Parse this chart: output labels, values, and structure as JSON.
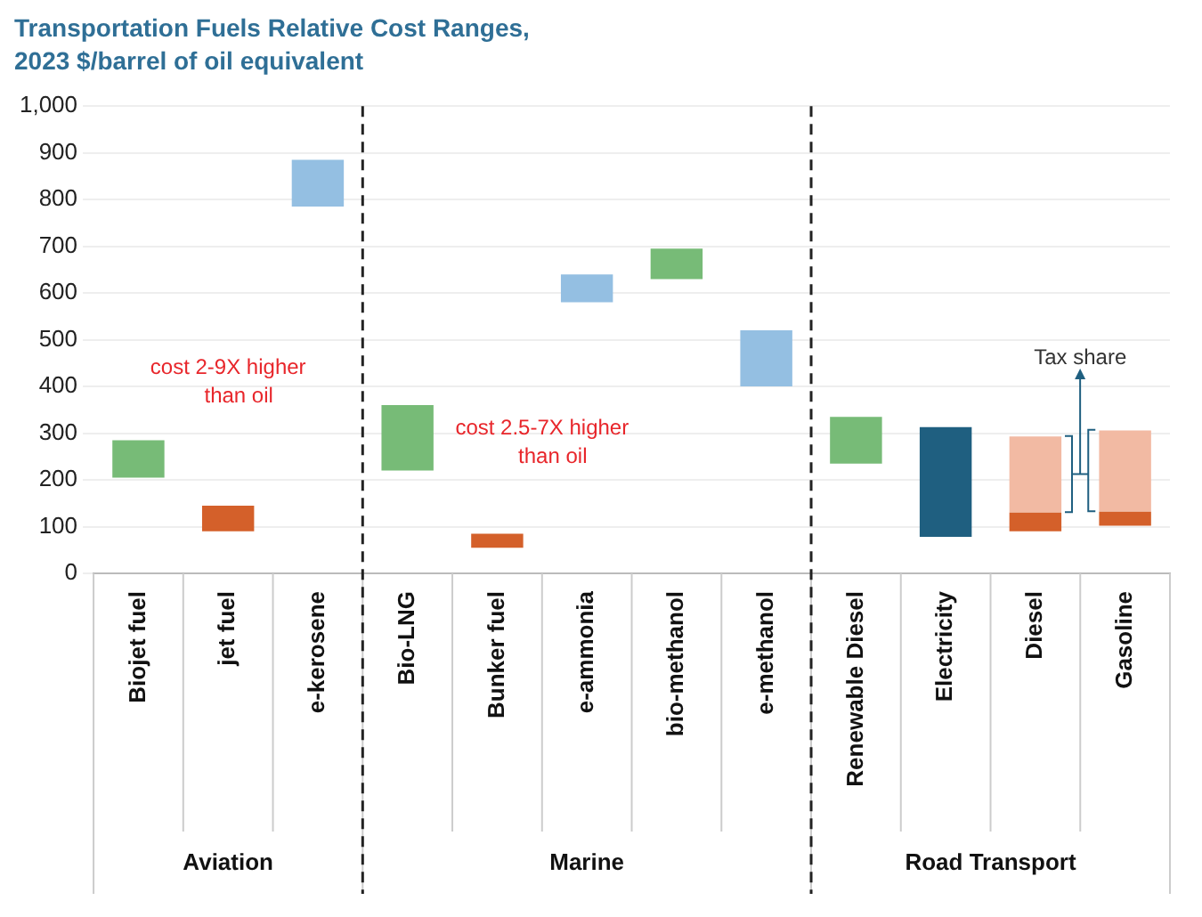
{
  "chart_data": {
    "type": "bar",
    "title": "Transportation Fuels Relative Cost Ranges,",
    "subtitle": "2023 $/barrel of oil equivalent",
    "categories": [
      "Biojet fuel",
      "jet fuel",
      "e-kerosene",
      "Bio-LNG",
      "Bunker fuel",
      "e-ammonia",
      "bio-methanol",
      "e-methanol",
      "Renewable Diesel",
      "Electricity",
      "Diesel",
      "Gasoline"
    ],
    "series": [
      {
        "values": [
          80,
          55,
          100,
          140,
          30,
          60,
          65,
          120,
          100,
          235,
          40,
          30
        ],
        "base": [
          205,
          90,
          785,
          220,
          55,
          580,
          630,
          400,
          235,
          78,
          90,
          102
        ],
        "colors": [
          "#77bb77",
          "#d4602a",
          "#94bfe2",
          "#77bb77",
          "#d4602a",
          "#94bfe2",
          "#77bb77",
          "#94bfe2",
          "#77bb77",
          "#1f5f80",
          "#d4602a",
          "#d4602a"
        ]
      },
      {
        "values": [
          null,
          null,
          null,
          null,
          null,
          null,
          null,
          null,
          null,
          null,
          163,
          174
        ],
        "color": "#f2baa3"
      }
    ],
    "stacked": true,
    "ylim": [
      0,
      1000
    ],
    "yticks": [
      0,
      {
        "value": 100,
        "label": "100"
      },
      {
        "value": 200,
        "label": "200"
      },
      {
        "value": 300,
        "label": "300"
      },
      {
        "value": 400,
        "label": "400"
      },
      {
        "value": 500,
        "label": "500"
      },
      {
        "value": 600,
        "label": "600"
      },
      {
        "value": 700,
        "label": "700"
      },
      {
        "value": 800,
        "label": "800"
      },
      {
        "value": 900,
        "label": "900"
      },
      {
        "value": 1000,
        "label": "1,000"
      }
    ],
    "grid": "y",
    "legend": false,
    "annotations": [
      "Aviation",
      "Marine",
      "Road Transport",
      "cost 2-9X higher than oil",
      "cost 2.5-7X higher than oil",
      "Tax share"
    ]
  }
}
